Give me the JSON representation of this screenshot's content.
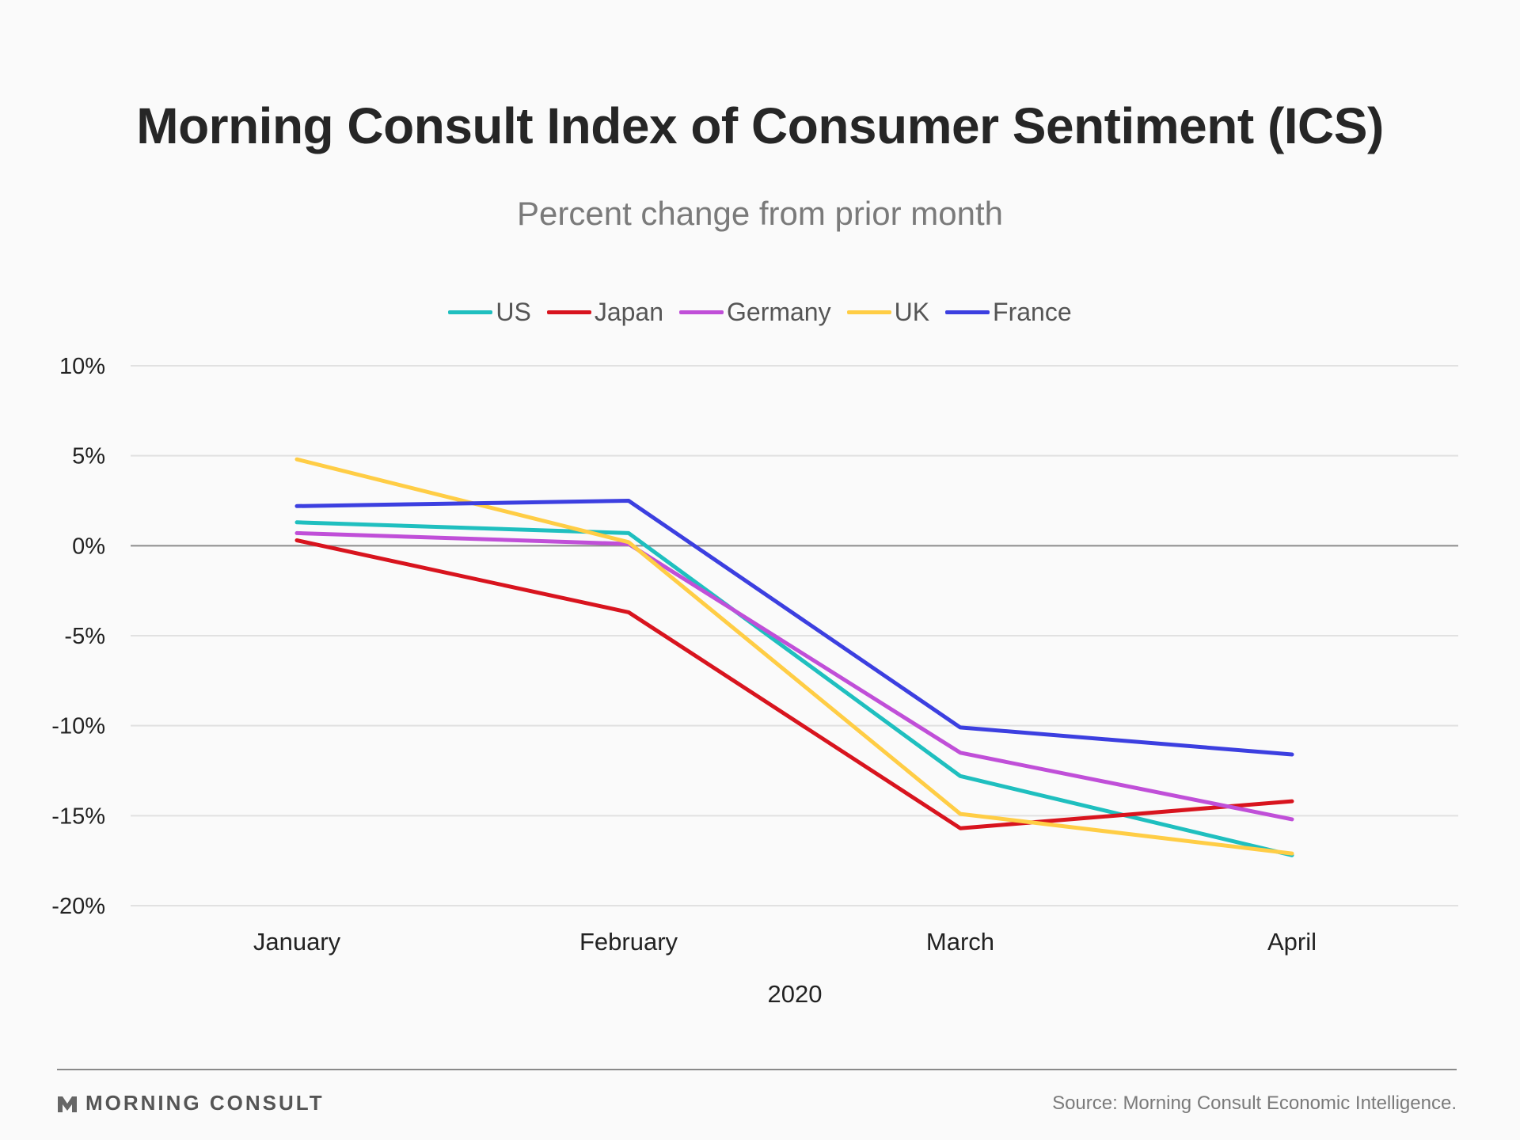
{
  "chart_data": {
    "type": "line",
    "title": "Morning Consult Index of Consumer Sentiment (ICS)",
    "subtitle": "Percent change from prior month",
    "xlabel": "2020",
    "ylabel": "",
    "categories": [
      "January",
      "February",
      "March",
      "April"
    ],
    "y_ticks": [
      "10%",
      "5%",
      "0%",
      "-5%",
      "-10%",
      "-15%",
      "-20%"
    ],
    "ylim": [
      -20,
      10
    ],
    "grid": true,
    "legend_position": "top-center",
    "series": [
      {
        "name": "US",
        "color": "#1fbfbf",
        "values": [
          1.3,
          0.7,
          -12.8,
          -17.2
        ]
      },
      {
        "name": "Japan",
        "color": "#d8141e",
        "values": [
          0.3,
          -3.7,
          -15.7,
          -14.2
        ]
      },
      {
        "name": "Germany",
        "color": "#c04fd8",
        "values": [
          0.7,
          0.1,
          -11.5,
          -15.2
        ]
      },
      {
        "name": "UK",
        "color": "#ffcd45",
        "values": [
          4.8,
          0.2,
          -14.9,
          -17.1
        ]
      },
      {
        "name": "France",
        "color": "#3c3fe0",
        "values": [
          2.2,
          2.5,
          -10.1,
          -11.6
        ]
      }
    ]
  },
  "footer": {
    "brand": "MORNING CONSULT",
    "brand_mark": "morning-consult-logo-icon",
    "source": "Source: Morning Consult Economic Intelligence."
  }
}
